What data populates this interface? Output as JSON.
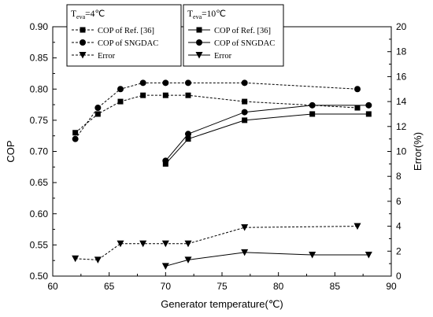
{
  "chart_data": {
    "type": "line",
    "xlabel": "Generator temperature(℃)",
    "ylabel_left": "COP",
    "ylabel_right": "Error(%)",
    "xlim": [
      60,
      90
    ],
    "ylim_left": [
      0.5,
      0.9
    ],
    "ylim_right": [
      0,
      20
    ],
    "x_ticks": [
      "60",
      "65",
      "70",
      "75",
      "80",
      "85",
      "90"
    ],
    "y_left_ticks": [
      "0.50",
      "0.55",
      "0.60",
      "0.65",
      "0.70",
      "0.75",
      "0.80",
      "0.85",
      "0.90"
    ],
    "y_right_ticks": [
      "0",
      "2",
      "4",
      "6",
      "8",
      "10",
      "12",
      "14",
      "16",
      "18",
      "20"
    ],
    "groups": [
      {
        "condition_main": "T",
        "condition_sub": "eva",
        "condition_value": "=4℃",
        "line_style": "dashed",
        "series": [
          {
            "name": "COP of  Ref. [36]",
            "marker": "square",
            "axis": "left",
            "x": [
              62,
              64,
              66,
              68,
              70,
              72,
              77,
              87
            ],
            "y": [
              0.73,
              0.76,
              0.78,
              0.79,
              0.79,
              0.79,
              0.78,
              0.77
            ]
          },
          {
            "name": "COP of  SNGDAC",
            "marker": "circle",
            "axis": "left",
            "x": [
              62,
              64,
              66,
              68,
              70,
              72,
              77,
              87
            ],
            "y": [
              0.72,
              0.77,
              0.8,
              0.81,
              0.81,
              0.81,
              0.81,
              0.8
            ]
          },
          {
            "name": "Error",
            "marker": "triangle-down",
            "axis": "right",
            "x": [
              62,
              64,
              66,
              68,
              70,
              72,
              77,
              87
            ],
            "y": [
              1.4,
              1.3,
              2.6,
              2.6,
              2.6,
              2.6,
              3.9,
              4.0
            ]
          }
        ]
      },
      {
        "condition_main": "T",
        "condition_sub": "eva",
        "condition_value": "=10℃",
        "line_style": "solid",
        "series": [
          {
            "name": "COP of Ref. [36]",
            "marker": "square",
            "axis": "left",
            "x": [
              70,
              72,
              77,
              83,
              88
            ],
            "y": [
              0.68,
              0.72,
              0.75,
              0.76,
              0.76
            ]
          },
          {
            "name": "COP of SNGDAC",
            "marker": "circle",
            "axis": "left",
            "x": [
              70,
              72,
              77,
              83,
              88
            ],
            "y": [
              0.685,
              0.728,
              0.763,
              0.774,
              0.774
            ]
          },
          {
            "name": "Error",
            "marker": "triangle-down",
            "axis": "right",
            "x": [
              70,
              72,
              77,
              83,
              88
            ],
            "y": [
              0.8,
              1.3,
              1.9,
              1.7,
              1.7
            ]
          }
        ]
      }
    ]
  }
}
